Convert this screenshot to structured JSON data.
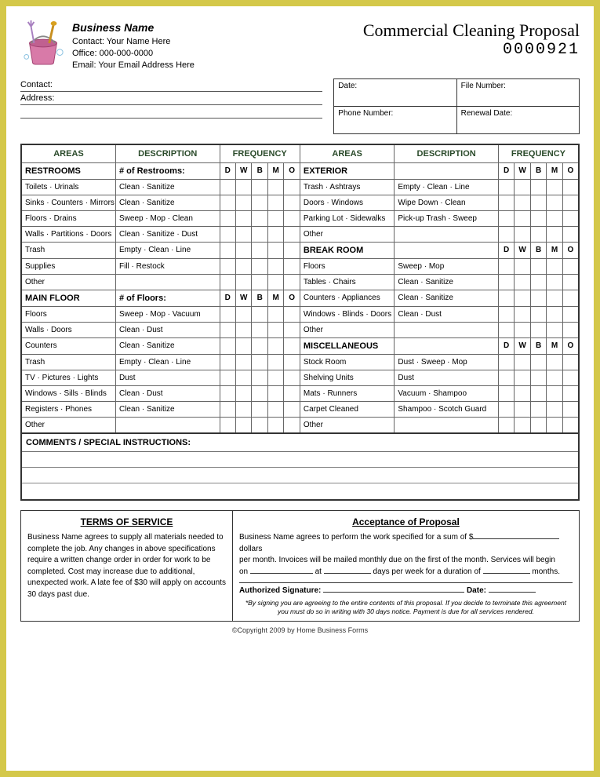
{
  "business": {
    "name": "Business Name",
    "contact_label": "Contact:",
    "contact_value": "Your Name Here",
    "office_label": "Office:",
    "office_value": "000-000-0000",
    "email_label": "Email:",
    "email_value": "Your Email Address Here"
  },
  "doc": {
    "title": "Commercial Cleaning Proposal",
    "number": "0000921"
  },
  "client": {
    "contact_label": "Contact:",
    "address_label": "Address:"
  },
  "info_box": {
    "date": "Date:",
    "file_number": "File Number:",
    "phone": "Phone Number:",
    "renewal": "Renewal Date:"
  },
  "headers": {
    "areas": "AREAS",
    "description": "DESCRIPTION",
    "frequency": "FREQUENCY",
    "freq_cols": [
      "D",
      "W",
      "B",
      "M",
      "O"
    ]
  },
  "sections_left": [
    {
      "name": "RESTROOMS",
      "desc": "# of Restrooms:",
      "freq_header": true,
      "rows": [
        {
          "area": "Toilets · Urinals",
          "desc": "Clean · Sanitize"
        },
        {
          "area": "Sinks · Counters · Mirrors",
          "desc": "Clean · Sanitize"
        },
        {
          "area": "Floors · Drains",
          "desc": "Sweep · Mop · Clean"
        },
        {
          "area": "Walls · Partitions · Doors",
          "desc": "Clean · Sanitize · Dust"
        },
        {
          "area": "Trash",
          "desc": "Empty · Clean · Line"
        },
        {
          "area": "Supplies",
          "desc": "Fill · Restock"
        },
        {
          "area": "Other",
          "desc": ""
        }
      ]
    },
    {
      "name": "MAIN FLOOR",
      "desc": "# of Floors:",
      "freq_header": true,
      "rows": [
        {
          "area": "Floors",
          "desc": "Sweep · Mop · Vacuum"
        },
        {
          "area": "Walls · Doors",
          "desc": "Clean · Dust"
        },
        {
          "area": "Counters",
          "desc": "Clean · Sanitize"
        },
        {
          "area": "Trash",
          "desc": "Empty · Clean · Line"
        },
        {
          "area": "TV · Pictures · Lights",
          "desc": "Dust"
        },
        {
          "area": "Windows · Sills · Blinds",
          "desc": "Clean · Dust"
        },
        {
          "area": "Registers · Phones",
          "desc": "Clean · Sanitize"
        },
        {
          "area": "Other",
          "desc": ""
        }
      ]
    }
  ],
  "sections_right": [
    {
      "name": "EXTERIOR",
      "desc": "",
      "freq_header": true,
      "rows": [
        {
          "area": "Trash · Ashtrays",
          "desc": "Empty · Clean · Line"
        },
        {
          "area": "Doors · Windows",
          "desc": "Wipe Down · Clean"
        },
        {
          "area": "Parking Lot · Sidewalks",
          "desc": "Pick-up Trash · Sweep"
        },
        {
          "area": "Other",
          "desc": ""
        }
      ]
    },
    {
      "name": "BREAK ROOM",
      "desc": "",
      "freq_header": true,
      "rows": [
        {
          "area": "Floors",
          "desc": "Sweep · Mop"
        },
        {
          "area": "Tables · Chairs",
          "desc": "Clean · Sanitize"
        },
        {
          "area": "Counters · Appliances",
          "desc": "Clean · Sanitize"
        },
        {
          "area": "Windows · Blinds · Doors",
          "desc": "Clean · Dust"
        },
        {
          "area": "Other",
          "desc": ""
        }
      ]
    },
    {
      "name": "MISCELLANEOUS",
      "desc": "",
      "freq_header": true,
      "rows": [
        {
          "area": "Stock Room",
          "desc": "Dust · Sweep · Mop"
        },
        {
          "area": "Shelving Units",
          "desc": "Dust"
        },
        {
          "area": "Mats · Runners",
          "desc": "Vacuum · Shampoo"
        },
        {
          "area": "Carpet Cleaned",
          "desc": "Shampoo · Scotch Guard"
        },
        {
          "area": "Other",
          "desc": ""
        }
      ]
    }
  ],
  "comments": {
    "title": "COMMENTS / SPECIAL INSTRUCTIONS:"
  },
  "terms": {
    "title": "TERMS OF SERVICE",
    "body": "Business Name agrees to supply all materials needed to complete the job.  Any changes in above specifications require a written change order in order for work to be completed.  Cost may increase due to additional, unexpected work.  A late fee of $30 will apply on accounts 30 days past due."
  },
  "acceptance": {
    "title": "Acceptance of Proposal",
    "line1a": "Business Name agrees to perform the work specified for a sum of $",
    "line1b": "dollars",
    "line2": "per month.  Invoices will be mailed monthly due on the first of the month.  Services will begin",
    "line3a": "on",
    "line3b": "at",
    "line3c": "days per week for a duration of",
    "line3d": "months.",
    "sig_label": "Authorized Signature:",
    "date_label": "Date:",
    "fine": "*By signing you are agreeing to the entire contents of this proposal.  If you decide to terminate this agreement you must do so in writing with 30 days notice.  Payment is due for all services rendered."
  },
  "copyright": "©Copyright 2009 by Home Business Forms"
}
